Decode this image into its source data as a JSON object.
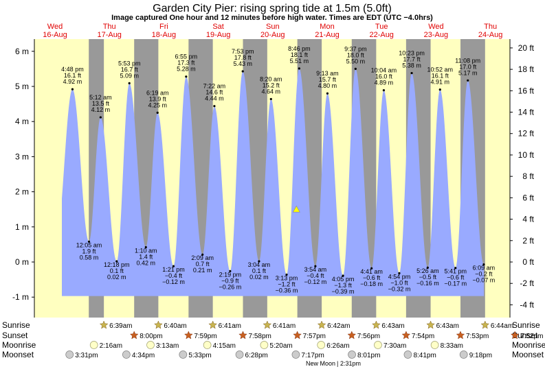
{
  "chart_data": {
    "type": "area",
    "title": "Garden City Pier: rising  spring tide at 1.5m (5.0ft)",
    "subtitle": "Image captured One hour and 12 minutes before high water. Times are EDT (UTC −4.0hrs)",
    "days": [
      {
        "dow": "Wed",
        "date": "16-Aug"
      },
      {
        "dow": "Thu",
        "date": "17-Aug"
      },
      {
        "dow": "Fri",
        "date": "18-Aug"
      },
      {
        "dow": "Sat",
        "date": "19-Aug"
      },
      {
        "dow": "Sun",
        "date": "20-Aug"
      },
      {
        "dow": "Mon",
        "date": "21-Aug"
      },
      {
        "dow": "Tue",
        "date": "22-Aug"
      },
      {
        "dow": "Wed",
        "date": "23-Aug"
      },
      {
        "dow": "Thu",
        "date": "24-Aug"
      }
    ],
    "y_left_ticks": [
      "-1 m",
      "0 m",
      "1 m",
      "2 m",
      "3 m",
      "4 m",
      "5 m",
      "6 m"
    ],
    "y_right_ticks": [
      "-4 ft",
      "-2 ft",
      "0 ft",
      "2 ft",
      "4 ft",
      "6 ft",
      "8 ft",
      "10 ft",
      "12 ft",
      "14 ft",
      "16 ft",
      "18 ft",
      "20 ft"
    ],
    "ylim_m": [
      -1,
      6.3
    ],
    "extremes": [
      {
        "type": "high",
        "time": "4:48 pm",
        "ft": "16.1 ft",
        "m": "4.92 m",
        "day": 0,
        "hour": 16.8,
        "value": 4.92
      },
      {
        "type": "low",
        "time": "12:05 am",
        "ft": "1.9 ft",
        "m": "0.58 m",
        "day": 1,
        "hour": 0.083,
        "value": 0.58
      },
      {
        "type": "high",
        "time": "5:12 am",
        "ft": "13.5 ft",
        "m": "4.12 m",
        "day": 1,
        "hour": 5.2,
        "value": 4.12
      },
      {
        "type": "low",
        "time": "12:18 pm",
        "ft": "0.1 ft",
        "m": "0.02 m",
        "day": 1,
        "hour": 12.3,
        "value": 0.02
      },
      {
        "type": "high",
        "time": "5:53 pm",
        "ft": "16.7 ft",
        "m": "5.09 m",
        "day": 1,
        "hour": 17.883,
        "value": 5.09
      },
      {
        "type": "low",
        "time": "1:10 am",
        "ft": "1.4 ft",
        "m": "0.42 m",
        "day": 2,
        "hour": 1.167,
        "value": 0.42
      },
      {
        "type": "high",
        "time": "6:19 am",
        "ft": "13.9 ft",
        "m": "4.25 m",
        "day": 2,
        "hour": 6.317,
        "value": 4.25
      },
      {
        "type": "low",
        "time": "1:21 pm",
        "ft": "−0.4 ft",
        "m": "−0.12 m",
        "day": 2,
        "hour": 13.35,
        "value": -0.12
      },
      {
        "type": "high",
        "time": "6:55 pm",
        "ft": "17.3 ft",
        "m": "5.28 m",
        "day": 2,
        "hour": 18.917,
        "value": 5.28
      },
      {
        "type": "low",
        "time": "2:09 am",
        "ft": "0.7 ft",
        "m": "0.21 m",
        "day": 3,
        "hour": 2.15,
        "value": 0.21
      },
      {
        "type": "high",
        "time": "7:22 am",
        "ft": "14.6 ft",
        "m": "4.44 m",
        "day": 3,
        "hour": 7.367,
        "value": 4.44
      },
      {
        "type": "low",
        "time": "2:19 pm",
        "ft": "−0.9 ft",
        "m": "−0.26 m",
        "day": 3,
        "hour": 14.317,
        "value": -0.26
      },
      {
        "type": "high",
        "time": "7:53 pm",
        "ft": "17.8 ft",
        "m": "5.43 m",
        "day": 3,
        "hour": 19.883,
        "value": 5.43
      },
      {
        "type": "low",
        "time": "3:04 am",
        "ft": "0.1 ft",
        "m": "0.02 m",
        "day": 4,
        "hour": 3.067,
        "value": 0.02
      },
      {
        "type": "high",
        "time": "8:20 am",
        "ft": "15.2 ft",
        "m": "4.64 m",
        "day": 4,
        "hour": 8.333,
        "value": 4.64
      },
      {
        "type": "low",
        "time": "3:13 pm",
        "ft": "−1.2 ft",
        "m": "−0.36 m",
        "day": 4,
        "hour": 15.217,
        "value": -0.36
      },
      {
        "type": "high",
        "time": "8:46 pm",
        "ft": "18.1 ft",
        "m": "5.51 m",
        "day": 4,
        "hour": 20.767,
        "value": 5.51
      },
      {
        "type": "low",
        "time": "3:54 am",
        "ft": "−0.4 ft",
        "m": "−0.12 m",
        "day": 5,
        "hour": 3.9,
        "value": -0.12
      },
      {
        "type": "high",
        "time": "9:13 am",
        "ft": "15.7 ft",
        "m": "4.80 m",
        "day": 5,
        "hour": 9.217,
        "value": 4.8
      },
      {
        "type": "low",
        "time": "4:05 pm",
        "ft": "−1.3 ft",
        "m": "−0.39 m",
        "day": 5,
        "hour": 16.083,
        "value": -0.39
      },
      {
        "type": "high",
        "time": "9:37 pm",
        "ft": "18.0 ft",
        "m": "5.50 m",
        "day": 5,
        "hour": 21.617,
        "value": 5.5
      },
      {
        "type": "low",
        "time": "4:41 am",
        "ft": "−0.6 ft",
        "m": "−0.18 m",
        "day": 6,
        "hour": 4.683,
        "value": -0.18
      },
      {
        "type": "high",
        "time": "10:04 am",
        "ft": "16.0 ft",
        "m": "4.89 m",
        "day": 6,
        "hour": 10.067,
        "value": 4.89
      },
      {
        "type": "low",
        "time": "4:54 pm",
        "ft": "−1.0 ft",
        "m": "−0.32 m",
        "day": 6,
        "hour": 16.9,
        "value": -0.32
      },
      {
        "type": "high",
        "time": "10:23 pm",
        "ft": "17.7 ft",
        "m": "5.38 m",
        "day": 6,
        "hour": 22.383,
        "value": 5.38
      },
      {
        "type": "low",
        "time": "5:26 am",
        "ft": "−0.5 ft",
        "m": "−0.16 m",
        "day": 7,
        "hour": 5.433,
        "value": -0.16
      },
      {
        "type": "high",
        "time": "10:52 am",
        "ft": "16.1 ft",
        "m": "4.91 m",
        "day": 7,
        "hour": 10.867,
        "value": 4.91
      },
      {
        "type": "low",
        "time": "5:41 pm",
        "ft": "−0.6 ft",
        "m": "−0.17 m",
        "day": 7,
        "hour": 17.683,
        "value": -0.17
      },
      {
        "type": "high",
        "time": "11:08 pm",
        "ft": "17.0 ft",
        "m": "5.17 m",
        "day": 7,
        "hour": 23.133,
        "value": 5.17
      },
      {
        "type": "low",
        "time": "6:09 am",
        "ft": "−0.2 ft",
        "m": "−0.07 m",
        "day": 8,
        "hour": 6.15,
        "value": -0.07
      }
    ],
    "current_marker": {
      "day": 4,
      "hour": 19.55,
      "value": 1.5
    },
    "sunrise": [
      {
        "day": 1,
        "time": "6:39am",
        "hour": 6.65
      },
      {
        "day": 2,
        "time": "6:40am",
        "hour": 6.667
      },
      {
        "day": 3,
        "time": "6:41am",
        "hour": 6.683
      },
      {
        "day": 4,
        "time": "6:41am",
        "hour": 6.683
      },
      {
        "day": 5,
        "time": "6:42am",
        "hour": 6.7
      },
      {
        "day": 6,
        "time": "6:43am",
        "hour": 6.717
      },
      {
        "day": 7,
        "time": "6:43am",
        "hour": 6.717
      },
      {
        "day": 8,
        "time": "6:44am",
        "hour": 6.733
      }
    ],
    "sunset": [
      {
        "day": 1,
        "time": "8:00pm",
        "hour": 20.0
      },
      {
        "day": 2,
        "time": "7:59pm",
        "hour": 19.983
      },
      {
        "day": 3,
        "time": "7:58pm",
        "hour": 19.967
      },
      {
        "day": 4,
        "time": "7:57pm",
        "hour": 19.95
      },
      {
        "day": 5,
        "time": "7:56pm",
        "hour": 19.933
      },
      {
        "day": 6,
        "time": "7:54pm",
        "hour": 19.9
      },
      {
        "day": 7,
        "time": "7:53pm",
        "hour": 19.883
      },
      {
        "day": 8,
        "time": "7:52pm",
        "hour": 19.867
      }
    ],
    "moonrise": [
      {
        "day": 1,
        "time": "2:16am"
      },
      {
        "day": 2,
        "time": "3:13am"
      },
      {
        "day": 3,
        "time": "4:15am"
      },
      {
        "day": 4,
        "time": "5:20am"
      },
      {
        "day": 5,
        "time": "6:26am"
      },
      {
        "day": 6,
        "time": "7:30am"
      },
      {
        "day": 7,
        "time": "8:33am"
      }
    ],
    "moonset": [
      {
        "day": 0,
        "time": "3:31pm"
      },
      {
        "day": 1,
        "time": "4:34pm"
      },
      {
        "day": 2,
        "time": "5:33pm"
      },
      {
        "day": 3,
        "time": "6:28pm"
      },
      {
        "day": 4,
        "time": "7:17pm"
      },
      {
        "day": 5,
        "time": "8:01pm"
      },
      {
        "day": 6,
        "time": "8:41pm"
      },
      {
        "day": 7,
        "time": "9:18pm"
      }
    ],
    "row_labels": {
      "sunrise": "Sunrise",
      "sunset": "Sunset",
      "moonrise": "Moonrise",
      "moonset": "Moonset"
    },
    "moon_phase": {
      "label": "New Moon",
      "time": "2:31pm"
    },
    "colors": {
      "day": "#ffffc0",
      "night": "#999999",
      "tide": "#99aaff",
      "day_header": "#e00000",
      "star_sun": "#c8b450",
      "star_set": "#c86020",
      "moonrise": "#ffffc8",
      "moonset": "#cccccc",
      "marker": "#ffff00"
    }
  }
}
